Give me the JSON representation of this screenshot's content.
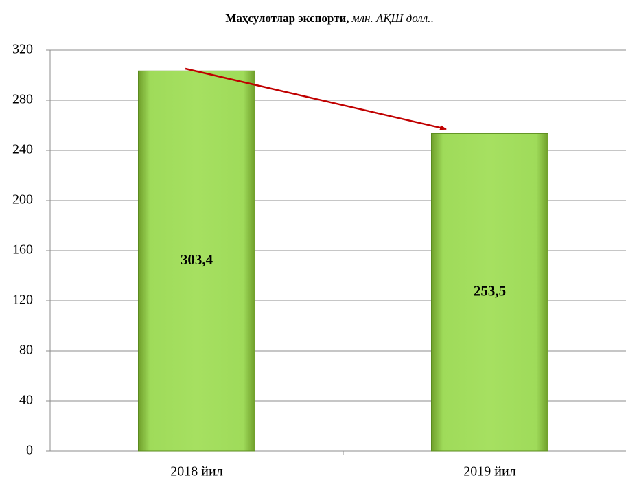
{
  "chart_data": {
    "type": "bar",
    "title": "Маҳсулотлар экспорти,",
    "title_unit": "млн. АҚШ долл.",
    "categories": [
      "2018 йил",
      "2019 йил"
    ],
    "values": [
      303.4,
      253.5
    ],
    "value_labels": [
      "303,4",
      "253,5"
    ],
    "color": "#92d050",
    "ylim": [
      0,
      320
    ],
    "yticks": [
      0,
      40,
      80,
      120,
      160,
      200,
      240,
      280,
      320
    ],
    "grid": true
  }
}
